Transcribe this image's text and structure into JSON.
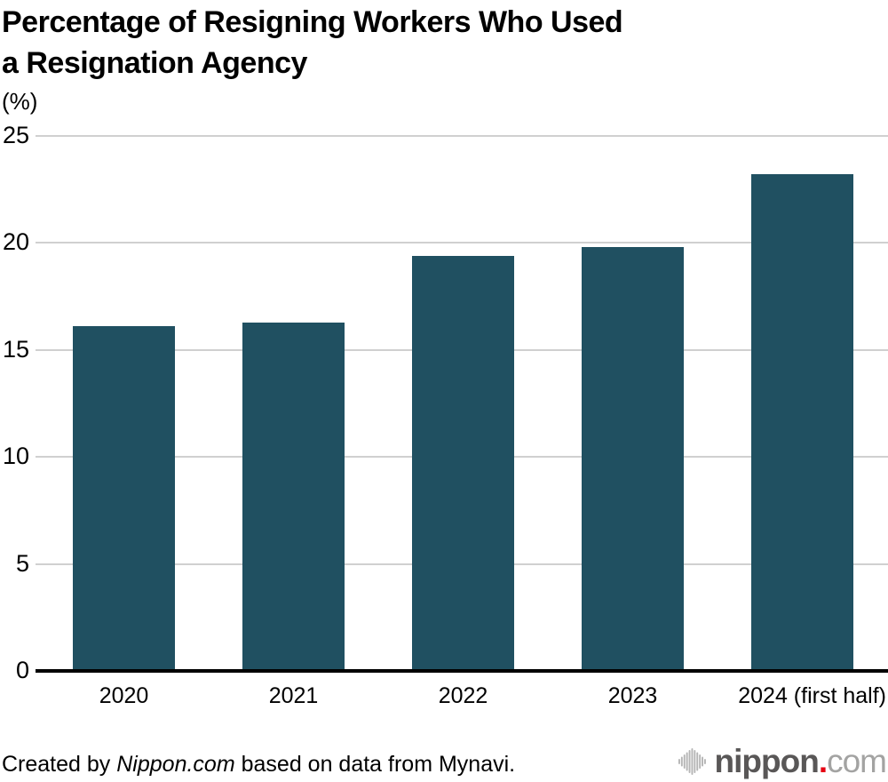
{
  "title_lines": [
    "Percentage of Resigning Workers Who Used",
    "a Resignation Agency"
  ],
  "unit_label": "(%)",
  "footer": {
    "prefix": "Created by ",
    "brand": "Nippon.com",
    "suffix": " based on data from Mynavi."
  },
  "logo": {
    "icon": "waveform-icon",
    "name": "nippon",
    "dot": ".",
    "tld": "com"
  },
  "colors": {
    "bar": "#205061",
    "gridline": "#d0d0d0",
    "axis": "#000000",
    "logo_dark": "#595757",
    "logo_light": "#a3a3a2",
    "logo_red": "#e60012",
    "logo_icon": "#b5b5b5"
  },
  "chart_data": {
    "type": "bar",
    "title": "Percentage of Resigning Workers Who Used a Resignation Agency",
    "categories": [
      "2020",
      "2021",
      "2022",
      "2023",
      "2024 (first half)"
    ],
    "values": [
      16.1,
      16.3,
      19.4,
      19.8,
      23.2
    ],
    "xlabel": "",
    "ylabel": "(%)",
    "ylim": [
      0,
      25
    ],
    "yticks": [
      0,
      5,
      10,
      15,
      20,
      25
    ],
    "grid": true,
    "legend": false,
    "bar_color": "#205061",
    "source": "Created by Nippon.com based on data from Mynavi."
  }
}
